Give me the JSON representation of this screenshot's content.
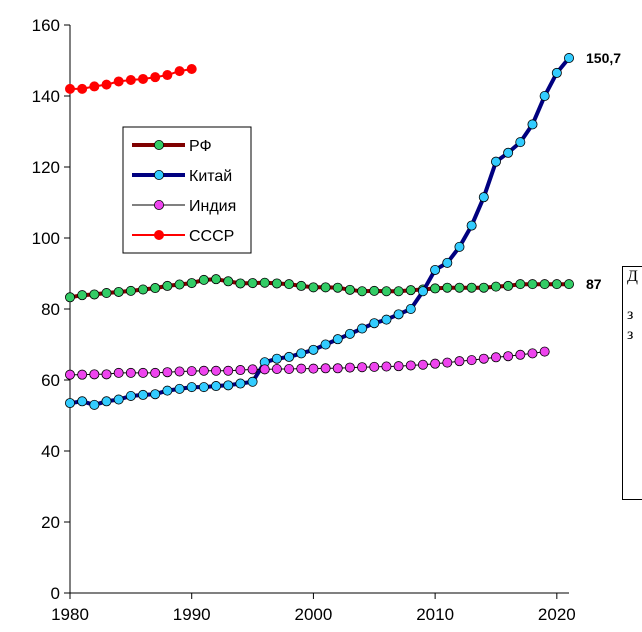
{
  "chart_data": {
    "type": "line",
    "title": "",
    "xlabel": "",
    "ylabel": "",
    "xlim": [
      1980,
      2021
    ],
    "ylim": [
      0,
      160
    ],
    "grid": false,
    "x_ticks": [
      1980,
      1990,
      2000,
      2010,
      2020
    ],
    "y_ticks": [
      0,
      20,
      40,
      60,
      80,
      100,
      120,
      140,
      160
    ],
    "legend_position": "left",
    "series": [
      {
        "name": "РФ",
        "color": "#7f0000",
        "marker_color": "#33cc66",
        "line_width": 4,
        "x": [
          1980,
          1981,
          1982,
          1983,
          1984,
          1985,
          1986,
          1987,
          1988,
          1989,
          1990,
          1991,
          1992,
          1993,
          1994,
          1995,
          1996,
          1997,
          1998,
          1999,
          2000,
          2001,
          2002,
          2003,
          2004,
          2005,
          2006,
          2007,
          2008,
          2009,
          2010,
          2011,
          2012,
          2013,
          2014,
          2015,
          2016,
          2017,
          2018,
          2019,
          2020,
          2021
        ],
        "values": [
          83.3,
          83.9,
          84.1,
          84.5,
          84.8,
          85.1,
          85.5,
          85.9,
          86.5,
          86.9,
          87.3,
          88.2,
          88.4,
          87.8,
          87.2,
          87.3,
          87.4,
          87.2,
          87.0,
          86.5,
          86.1,
          86.1,
          86.0,
          85.4,
          85.0,
          85.1,
          85.0,
          85.0,
          85.3,
          85.5,
          85.8,
          86.0,
          86.0,
          86.0,
          86.0,
          86.3,
          86.5,
          87.0,
          87.0,
          87.0,
          87.0,
          87.0
        ]
      },
      {
        "name": "Китай",
        "color": "#000080",
        "marker_color": "#33ccff",
        "line_width": 4,
        "x": [
          1980,
          1981,
          1982,
          1983,
          1984,
          1985,
          1986,
          1987,
          1988,
          1989,
          1990,
          1991,
          1992,
          1993,
          1994,
          1995,
          1996,
          1997,
          1998,
          1999,
          2000,
          2001,
          2002,
          2003,
          2004,
          2005,
          2006,
          2007,
          2008,
          2009,
          2010,
          2011,
          2012,
          2013,
          2014,
          2015,
          2016,
          2017,
          2018,
          2019,
          2020,
          2021
        ],
        "values": [
          53.5,
          54.0,
          53.0,
          54.0,
          54.5,
          55.5,
          55.8,
          56.0,
          57.0,
          57.5,
          58.0,
          58.0,
          58.3,
          58.5,
          59.0,
          59.5,
          65.0,
          66.0,
          66.5,
          67.5,
          68.5,
          70.0,
          71.5,
          73.0,
          74.5,
          76.0,
          77.0,
          78.5,
          80.0,
          85.0,
          91.0,
          93.0,
          97.5,
          103.5,
          111.5,
          121.5,
          124.0,
          127.0,
          132.0,
          140.0,
          146.5,
          150.7
        ]
      },
      {
        "name": "Индия",
        "color": "#000000",
        "marker_color": "#ee44ee",
        "line_width": 1,
        "x": [
          1980,
          1981,
          1982,
          1983,
          1984,
          1985,
          1986,
          1987,
          1988,
          1989,
          1990,
          1991,
          1992,
          1993,
          1994,
          1995,
          1996,
          1997,
          1998,
          1999,
          2000,
          2001,
          2002,
          2003,
          2004,
          2005,
          2006,
          2007,
          2008,
          2009,
          2010,
          2011,
          2012,
          2013,
          2014,
          2015,
          2016,
          2017,
          2018,
          2019
        ],
        "values": [
          61.5,
          61.5,
          61.6,
          61.6,
          62.0,
          62.0,
          62.0,
          62.0,
          62.2,
          62.4,
          62.5,
          62.6,
          62.6,
          62.6,
          62.8,
          63.0,
          63.0,
          63.1,
          63.1,
          63.2,
          63.2,
          63.3,
          63.3,
          63.5,
          63.6,
          63.7,
          63.8,
          63.9,
          64.1,
          64.3,
          64.6,
          64.9,
          65.3,
          65.6,
          66.0,
          66.4,
          66.7,
          67.1,
          67.5,
          68.0
        ]
      },
      {
        "name": "СССР",
        "color": "#ff0000",
        "marker_color": "#ff0000",
        "line_width": 2,
        "x": [
          1980,
          1981,
          1982,
          1983,
          1984,
          1985,
          1986,
          1987,
          1988,
          1989,
          1990
        ],
        "values": [
          142.0,
          142.0,
          142.7,
          143.2,
          144.1,
          144.5,
          144.8,
          145.3,
          145.9,
          147.0,
          147.6
        ]
      }
    ],
    "annotations": [
      {
        "text": "150,7",
        "x": 2021,
        "y": 150.7
      },
      {
        "text": "87",
        "x": 2021,
        "y": 87
      }
    ]
  },
  "note_box": {
    "lines": [
      "Д",
      "з",
      "з"
    ]
  }
}
